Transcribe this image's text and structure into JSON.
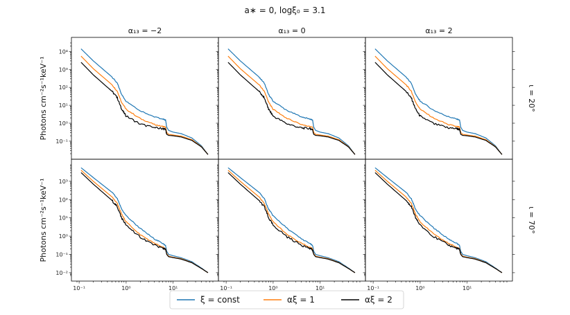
{
  "chart_data": {
    "type": "line",
    "title": "a∗ = 0, logξ₀ = 3.1",
    "ylabel": "Photons cm⁻²s⁻¹keV⁻¹",
    "xscale": "log",
    "yscale": "log",
    "xlim": [
      0.09,
      70
    ],
    "x_tick_labels": [
      "10⁻¹",
      "10⁰",
      "10¹"
    ],
    "columns": [
      "α₁₃ = −2",
      "α₁₃ = 0",
      "α₁₃ = 2"
    ],
    "rows": [
      "ι = 20°",
      "ι = 70°"
    ],
    "row_ylim": [
      [
        0.02,
        30000
      ],
      [
        0.007,
        8000
      ]
    ],
    "row_y_tick_labels": [
      [
        "10⁻¹",
        "10⁰",
        "10¹",
        "10²",
        "10³",
        "10⁴"
      ],
      [
        "10⁻²",
        "10⁻¹",
        "10⁰",
        "10¹",
        "10²",
        "10³"
      ]
    ],
    "legend": [
      {
        "label": "ξ = const",
        "color": "#1f77b4"
      },
      {
        "label": "αξ = 1",
        "color": "#ff7f0e"
      },
      {
        "label": "αξ = 2",
        "color": "#000000"
      }
    ],
    "legend_position": "bottom-center",
    "x": [
      0.11,
      0.2,
      0.5,
      0.65,
      0.8,
      1.0,
      2.0,
      4.0,
      6.0,
      6.9,
      7.3,
      8.0,
      10,
      15,
      25,
      40,
      55
    ],
    "panels": [
      {
        "row": 0,
        "col": 0,
        "series": [
          {
            "name": "ξ = const",
            "values": [
              14000,
              3000,
              380,
              170,
              40,
              17,
              5,
              2.3,
              1.7,
              1.5,
              0.6,
              0.4,
              0.32,
              0.26,
              0.15,
              0.055,
              0.018
            ]
          },
          {
            "name": "αξ = 1",
            "values": [
              5500,
              1100,
              140,
              60,
              15,
              6,
              1.8,
              0.85,
              0.65,
              0.6,
              0.3,
              0.24,
              0.22,
              0.19,
              0.12,
              0.05,
              0.018
            ]
          },
          {
            "name": "αξ = 2",
            "values": [
              2500,
              500,
              60,
              26,
              6,
              2.5,
              0.9,
              0.55,
              0.5,
              0.45,
              0.24,
              0.21,
              0.2,
              0.17,
              0.11,
              0.048,
              0.018
            ]
          }
        ]
      },
      {
        "row": 0,
        "col": 1,
        "series": [
          {
            "name": "ξ = const",
            "values": [
              14000,
              3000,
              380,
              170,
              40,
              17,
              5,
              2.3,
              1.7,
              1.5,
              0.6,
              0.4,
              0.32,
              0.26,
              0.15,
              0.055,
              0.018
            ]
          },
          {
            "name": "αξ = 1",
            "values": [
              5500,
              1100,
              140,
              60,
              15,
              6,
              1.8,
              0.85,
              0.65,
              0.6,
              0.3,
              0.24,
              0.22,
              0.19,
              0.12,
              0.05,
              0.018
            ]
          },
          {
            "name": "αξ = 2",
            "values": [
              2500,
              500,
              60,
              26,
              6,
              2.5,
              0.9,
              0.55,
              0.5,
              0.45,
              0.24,
              0.21,
              0.2,
              0.17,
              0.11,
              0.048,
              0.018
            ]
          }
        ]
      },
      {
        "row": 0,
        "col": 2,
        "series": [
          {
            "name": "ξ = const",
            "values": [
              14000,
              3000,
              380,
              170,
              40,
              17,
              5,
              2.3,
              1.7,
              1.5,
              0.6,
              0.4,
              0.32,
              0.26,
              0.15,
              0.055,
              0.018
            ]
          },
          {
            "name": "αξ = 1",
            "values": [
              5500,
              1100,
              140,
              60,
              15,
              6,
              1.8,
              0.85,
              0.65,
              0.6,
              0.3,
              0.24,
              0.22,
              0.19,
              0.12,
              0.05,
              0.018
            ]
          },
          {
            "name": "αξ = 2",
            "values": [
              2500,
              500,
              60,
              26,
              6,
              2.5,
              0.9,
              0.55,
              0.5,
              0.45,
              0.24,
              0.21,
              0.2,
              0.17,
              0.11,
              0.048,
              0.018
            ]
          }
        ]
      },
      {
        "row": 1,
        "col": 0,
        "series": [
          {
            "name": "ξ = const",
            "values": [
              5500,
              1600,
              250,
              110,
              30,
              13,
              2.6,
              0.7,
              0.4,
              0.3,
              0.15,
              0.1,
              0.085,
              0.065,
              0.04,
              0.018,
              0.01
            ]
          },
          {
            "name": "αξ = 1",
            "values": [
              4000,
              1000,
              140,
              60,
              16,
              6,
              1.2,
              0.4,
              0.25,
              0.2,
              0.11,
              0.08,
              0.07,
              0.058,
              0.036,
              0.017,
              0.01
            ]
          },
          {
            "name": "αξ = 2",
            "values": [
              3000,
              700,
              90,
              40,
              10,
              4,
              0.9,
              0.32,
              0.22,
              0.18,
              0.1,
              0.075,
              0.067,
              0.055,
              0.035,
              0.017,
              0.01
            ]
          }
        ]
      },
      {
        "row": 1,
        "col": 1,
        "series": [
          {
            "name": "ξ = const",
            "values": [
              5500,
              1600,
              250,
              110,
              30,
              13,
              2.6,
              0.7,
              0.4,
              0.3,
              0.15,
              0.1,
              0.085,
              0.065,
              0.04,
              0.018,
              0.01
            ]
          },
          {
            "name": "αξ = 1",
            "values": [
              4000,
              1000,
              140,
              60,
              16,
              6,
              1.2,
              0.4,
              0.25,
              0.2,
              0.11,
              0.08,
              0.07,
              0.058,
              0.036,
              0.017,
              0.01
            ]
          },
          {
            "name": "αξ = 2",
            "values": [
              3000,
              700,
              90,
              40,
              10,
              4,
              0.9,
              0.32,
              0.22,
              0.18,
              0.1,
              0.075,
              0.067,
              0.055,
              0.035,
              0.017,
              0.01
            ]
          }
        ]
      },
      {
        "row": 1,
        "col": 2,
        "series": [
          {
            "name": "ξ = const",
            "values": [
              5500,
              1600,
              250,
              110,
              30,
              13,
              2.6,
              0.7,
              0.4,
              0.3,
              0.15,
              0.1,
              0.085,
              0.065,
              0.04,
              0.018,
              0.01
            ]
          },
          {
            "name": "αξ = 1",
            "values": [
              4000,
              1000,
              140,
              60,
              16,
              6,
              1.2,
              0.4,
              0.25,
              0.2,
              0.11,
              0.08,
              0.07,
              0.058,
              0.036,
              0.017,
              0.01
            ]
          },
          {
            "name": "αξ = 2",
            "values": [
              3000,
              700,
              90,
              40,
              10,
              4,
              0.9,
              0.32,
              0.22,
              0.18,
              0.1,
              0.075,
              0.067,
              0.055,
              0.035,
              0.017,
              0.01
            ]
          }
        ]
      }
    ]
  }
}
